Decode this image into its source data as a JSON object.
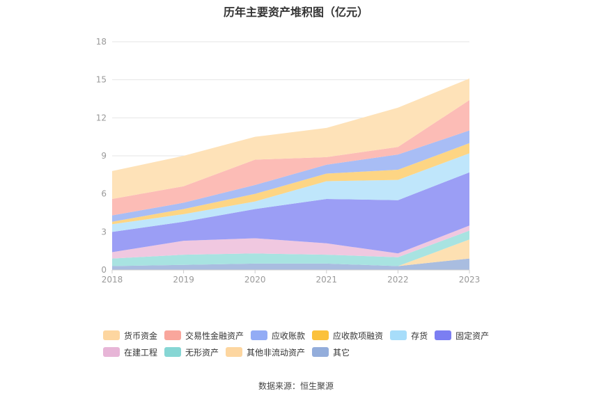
{
  "title": "历年主要资产堆积图（亿元）",
  "source": "数据来源：恒生聚源",
  "chart_data": {
    "type": "area",
    "stacked": true,
    "title": "历年主要资产堆积图（亿元）",
    "categories": [
      "2018",
      "2019",
      "2020",
      "2021",
      "2022",
      "2023"
    ],
    "ylim": [
      0,
      18
    ],
    "yticks": [
      0,
      3,
      6,
      9,
      12,
      15,
      18
    ],
    "grid": true,
    "legend_position": "bottom",
    "series": [
      {
        "name": "其它",
        "color": "#a9bde0",
        "values": [
          0.3,
          0.4,
          0.5,
          0.5,
          0.3,
          0.9
        ]
      },
      {
        "name": "其他非流动资产",
        "color": "#fde0b2",
        "values": [
          0.0,
          0.0,
          0.0,
          0.0,
          0.0,
          1.5
        ]
      },
      {
        "name": "无形资产",
        "color": "#a8e3e1",
        "values": [
          0.6,
          0.8,
          0.8,
          0.7,
          0.7,
          0.7
        ]
      },
      {
        "name": "在建工程",
        "color": "#f0c8e0",
        "values": [
          0.5,
          1.1,
          1.2,
          0.9,
          0.3,
          0.4
        ]
      },
      {
        "name": "固定资产",
        "color": "#9b9ef5",
        "values": [
          1.6,
          1.5,
          2.3,
          3.5,
          4.2,
          4.2
        ]
      },
      {
        "name": "存货",
        "color": "#bfe6fb",
        "values": [
          0.6,
          0.6,
          0.6,
          1.4,
          1.6,
          1.5
        ]
      },
      {
        "name": "应收款项融资",
        "color": "#fdd584",
        "values": [
          0.2,
          0.4,
          0.6,
          0.6,
          0.8,
          0.8
        ]
      },
      {
        "name": "应收账款",
        "color": "#a8bdf5",
        "values": [
          0.5,
          0.5,
          0.7,
          0.7,
          1.2,
          1.0
        ]
      },
      {
        "name": "交易性金融资产",
        "color": "#fcbcb6",
        "values": [
          1.3,
          1.3,
          2.0,
          0.6,
          0.6,
          2.4
        ]
      },
      {
        "name": "货币资金",
        "color": "#fee2b8",
        "values": [
          2.2,
          2.4,
          1.8,
          2.3,
          3.1,
          1.7
        ]
      }
    ]
  },
  "legend": {
    "row1": [
      {
        "label": "货币资金",
        "color": "#fdd6a0"
      },
      {
        "label": "交易性金融资产",
        "color": "#f9a69c"
      },
      {
        "label": "应收账款",
        "color": "#93acf5"
      },
      {
        "label": "应收款项融资",
        "color": "#fbc13c"
      },
      {
        "label": "存货",
        "color": "#a7ddfa"
      },
      {
        "label": "固定资产",
        "color": "#7b7ef2"
      }
    ],
    "row2": [
      {
        "label": "在建工程",
        "color": "#e7b5d7"
      },
      {
        "label": "无形资产",
        "color": "#86d6d4"
      },
      {
        "label": "其他非流动资产",
        "color": "#fdd6a0"
      },
      {
        "label": "其它",
        "color": "#93addb"
      }
    ]
  }
}
